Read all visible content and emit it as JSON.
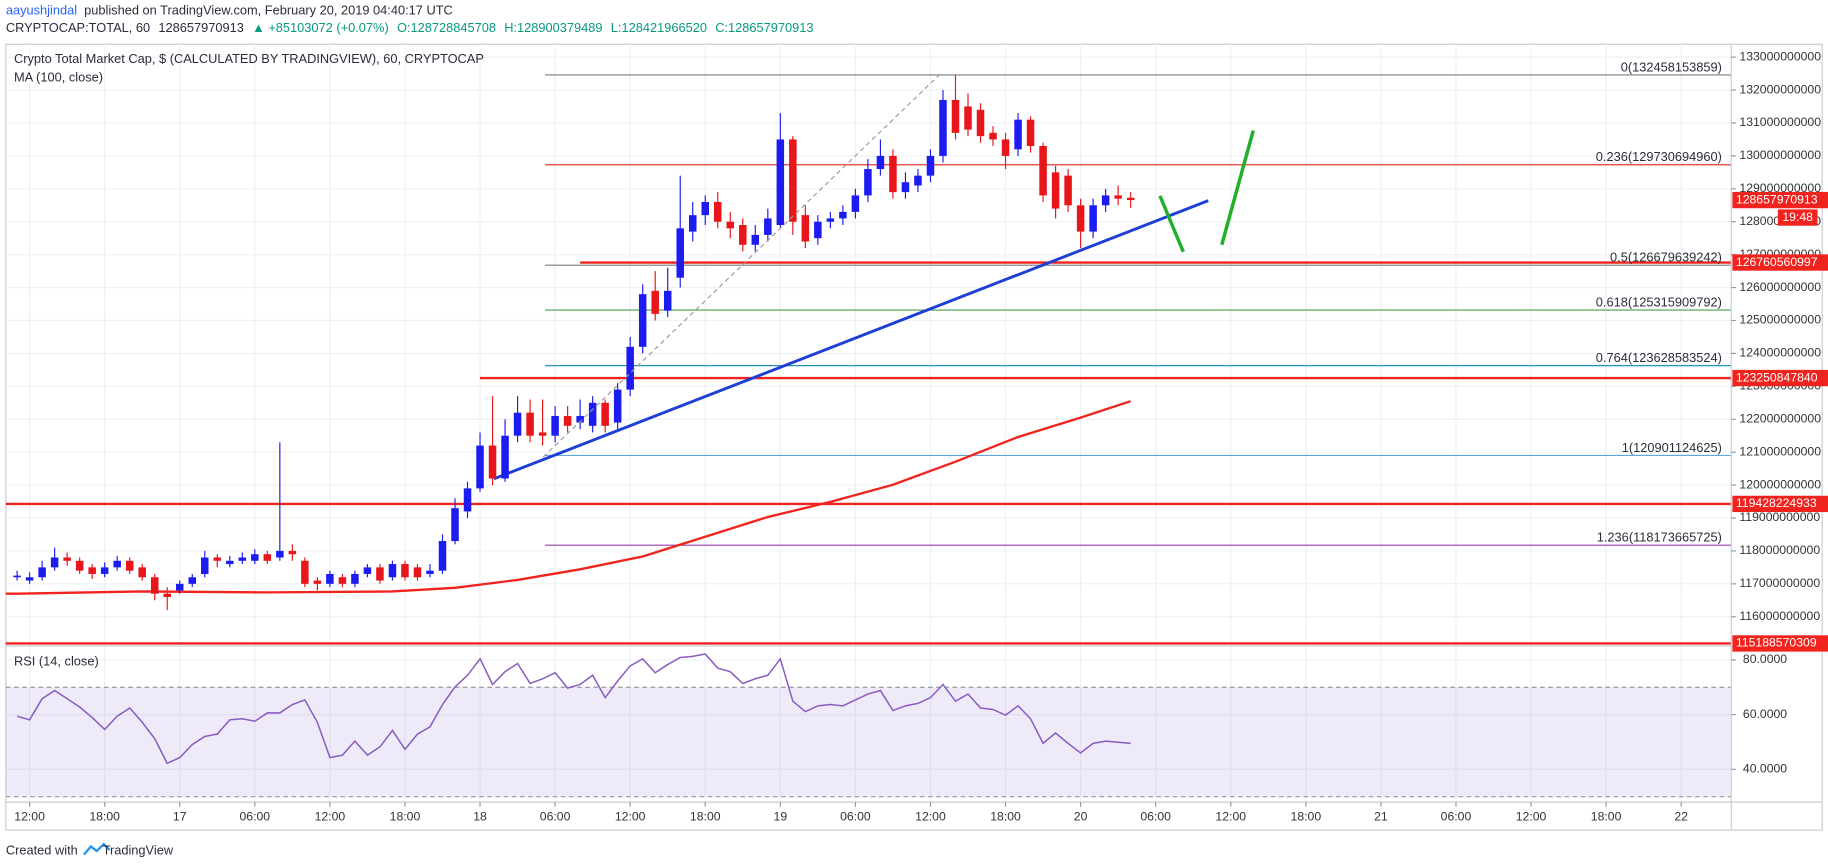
{
  "header": {
    "author": "aayushjindal",
    "published": "published on TradingView.com, February 20, 2019 04:40:17 UTC",
    "symbol": "CRYPTOCAP:TOTAL, 60",
    "last": "128657970913",
    "change": "▲ +85103072 (+0.07%)",
    "ohlc": [
      "O:128728845708",
      "H:128900379489",
      "L:128421966520",
      "C:128657970913"
    ]
  },
  "chart_data": [
    {
      "type": "candlestick",
      "title": "Crypto Total Market Cap, $ (CALCULATED BY TRADINGVIEW), 60, CRYPTOCAP",
      "up_color": "#1c1cf0",
      "down_color": "#e8151b",
      "grid": true,
      "xlim": [
        -0.9,
        137
      ],
      "ylim": [
        115150000000,
        133390000000
      ],
      "xticks": [
        {
          "value": 1,
          "label": "12:00"
        },
        {
          "value": 7,
          "label": "18:00"
        },
        {
          "value": 13,
          "label": "17"
        },
        {
          "value": 19,
          "label": "06:00"
        },
        {
          "value": 25,
          "label": "12:00"
        },
        {
          "value": 31,
          "label": "18:00"
        },
        {
          "value": 37,
          "label": "18"
        },
        {
          "value": 43,
          "label": "06:00"
        },
        {
          "value": 49,
          "label": "12:00"
        },
        {
          "value": 55,
          "label": "18:00"
        },
        {
          "value": 61,
          "label": "19"
        },
        {
          "value": 67,
          "label": "06:00"
        },
        {
          "value": 73,
          "label": "12:00"
        },
        {
          "value": 79,
          "label": "18:00"
        },
        {
          "value": 85,
          "label": "20"
        },
        {
          "value": 91,
          "label": "06:00"
        },
        {
          "value": 97,
          "label": "12:00"
        },
        {
          "value": 103,
          "label": "18:00"
        },
        {
          "value": 109,
          "label": "21"
        },
        {
          "value": 115,
          "label": "06:00"
        },
        {
          "value": 121,
          "label": "12:00"
        },
        {
          "value": 127,
          "label": "18:00"
        },
        {
          "value": 133,
          "label": "22"
        }
      ],
      "yticks": [
        116000000000,
        117000000000,
        118000000000,
        119000000000,
        120000000000,
        121000000000,
        122000000000,
        123000000000,
        124000000000,
        125000000000,
        126000000000,
        127000000000,
        128000000000,
        129000000000,
        130000000000,
        131000000000,
        132000000000,
        133000000000
      ],
      "open": [
        117200000000,
        117100000000,
        117200000000,
        117500000000,
        117800000000,
        117700000000,
        117500000000,
        117300000000,
        117500000000,
        117700000000,
        117500000000,
        117200000000,
        116700000000,
        116800000000,
        117000000000,
        117300000000,
        117800000000,
        117600000000,
        117700000000,
        117700000000,
        117900000000,
        117800000000,
        118000000000,
        117700000000,
        117100000000,
        117000000000,
        117200000000,
        117000000000,
        117300000000,
        117500000000,
        117200000000,
        117600000000,
        117500000000,
        117300000000,
        117400000000,
        118300000000,
        119200000000,
        119900000000,
        121200000000,
        120200000000,
        121500000000,
        122200000000,
        121600000000,
        121500000000,
        122100000000,
        121900000000,
        121800000000,
        122500000000,
        121900000000,
        122900000000,
        124200000000,
        125900000000,
        125300000000,
        126300000000,
        127700000000,
        128200000000,
        128600000000,
        128000000000,
        127900000000,
        127300000000,
        127600000000,
        127900000000,
        130500000000,
        128200000000,
        127500000000,
        128000000000,
        128100000000,
        128300000000,
        128800000000,
        129600000000,
        130000000000,
        128900000000,
        129100000000,
        129400000000,
        130000000000,
        131700000000,
        131500000000,
        131400000000,
        130700000000,
        130500000000,
        130200000000,
        131100000000,
        130300000000,
        129500000000,
        129400000000,
        128500000000,
        127700000000,
        128500000000,
        128800000000,
        128728845708
      ],
      "high": [
        117400000000,
        117350000000,
        117700000000,
        118100000000,
        117950000000,
        117800000000,
        117600000000,
        117650000000,
        117850000000,
        117800000000,
        117600000000,
        117300000000,
        116900000000,
        117100000000,
        117300000000,
        118000000000,
        117900000000,
        117850000000,
        117950000000,
        118050000000,
        118000000000,
        121300000000,
        118200000000,
        117800000000,
        117200000000,
        117400000000,
        117300000000,
        117400000000,
        117600000000,
        117600000000,
        117700000000,
        117700000000,
        117600000000,
        117600000000,
        118500000000,
        119600000000,
        120100000000,
        121600000000,
        122700000000,
        122000000000,
        122700000000,
        122600000000,
        122600000000,
        122400000000,
        122400000000,
        122600000000,
        122700000000,
        122600000000,
        123100000000,
        124500000000,
        126100000000,
        126500000000,
        126600000000,
        129400000000,
        128600000000,
        128800000000,
        128900000000,
        128300000000,
        128100000000,
        127900000000,
        128400000000,
        131300000000,
        130600000000,
        128500000000,
        128200000000,
        128300000000,
        128500000000,
        129000000000,
        129900000000,
        130500000000,
        130200000000,
        129500000000,
        129600000000,
        130200000000,
        132000000000,
        132460000000,
        131900000000,
        131600000000,
        130900000000,
        130700000000,
        131300000000,
        131200000000,
        130400000000,
        129700000000,
        129600000000,
        128700000000,
        128700000000,
        129000000000,
        129100000000,
        128900379489
      ],
      "low": [
        117100000000,
        117000000000,
        117100000000,
        117400000000,
        117550000000,
        117300000000,
        117150000000,
        117200000000,
        117400000000,
        117300000000,
        117100000000,
        116500000000,
        116200000000,
        116700000000,
        116900000000,
        117200000000,
        117500000000,
        117500000000,
        117600000000,
        117600000000,
        117600000000,
        117700000000,
        117700000000,
        116900000000,
        116800000000,
        116900000000,
        116900000000,
        116900000000,
        117200000000,
        117000000000,
        117100000000,
        117100000000,
        117100000000,
        117200000000,
        117300000000,
        118200000000,
        119000000000,
        119800000000,
        120000000000,
        120100000000,
        121300000000,
        121300000000,
        121200000000,
        121300000000,
        121600000000,
        121700000000,
        121600000000,
        121600000000,
        121700000000,
        122700000000,
        124000000000,
        125000000000,
        125100000000,
        126000000000,
        127400000000,
        127900000000,
        127800000000,
        127500000000,
        127100000000,
        127100000000,
        127400000000,
        127800000000,
        127600000000,
        127200000000,
        127300000000,
        127800000000,
        127900000000,
        128100000000,
        128600000000,
        129400000000,
        128700000000,
        128700000000,
        128900000000,
        129200000000,
        129800000000,
        130500000000,
        130600000000,
        130400000000,
        130300000000,
        129600000000,
        130000000000,
        130100000000,
        128600000000,
        128100000000,
        128300000000,
        127200000000,
        127500000000,
        128300000000,
        128500000000,
        128421966520
      ],
      "close": [
        117250000000,
        117200000000,
        117500000000,
        117800000000,
        117700000000,
        117400000000,
        117300000000,
        117500000000,
        117700000000,
        117400000000,
        117200000000,
        116700000000,
        116600000000,
        117000000000,
        117200000000,
        117800000000,
        117700000000,
        117700000000,
        117800000000,
        117900000000,
        117700000000,
        118000000000,
        117900000000,
        117000000000,
        117000000000,
        117300000000,
        117000000000,
        117300000000,
        117500000000,
        117100000000,
        117600000000,
        117200000000,
        117200000000,
        117400000000,
        118300000000,
        119300000000,
        119900000000,
        121200000000,
        120200000000,
        121500000000,
        122200000000,
        121500000000,
        121500000000,
        122100000000,
        121800000000,
        122100000000,
        122500000000,
        121800000000,
        122900000000,
        124200000000,
        125800000000,
        125200000000,
        125900000000,
        127800000000,
        128200000000,
        128600000000,
        128000000000,
        127800000000,
        127300000000,
        127600000000,
        128100000000,
        130500000000,
        128000000000,
        127400000000,
        128000000000,
        128100000000,
        128300000000,
        128800000000,
        129600000000,
        130000000000,
        128900000000,
        129200000000,
        129400000000,
        130000000000,
        131700000000,
        130700000000,
        130800000000,
        130600000000,
        130500000000,
        130000000000,
        131100000000,
        130300000000,
        128800000000,
        128400000000,
        128500000000,
        127700000000,
        128500000000,
        128800000000,
        128700000000,
        128657970913
      ],
      "ma": {
        "name": "MA (100, close)",
        "color": "#f0231e",
        "x": [
          -0.9,
          0,
          10,
          20,
          30,
          35,
          40,
          45,
          50,
          55,
          60,
          65,
          70,
          75,
          80,
          85,
          89
        ],
        "values": [
          116700000000,
          116700000000,
          116770000000,
          116740000000,
          116770000000,
          116880000000,
          117120000000,
          117440000000,
          117830000000,
          118430000000,
          119030000000,
          119490000000,
          120010000000,
          120710000000,
          121460000000,
          122050000000,
          122550000000
        ]
      },
      "trendline": {
        "color": "#1d3fd8",
        "x": [
          38.1,
          95.2
        ],
        "values": [
          120190000000,
          128640000000
        ]
      },
      "hline_color": "#f0231e",
      "hlines": [
        {
          "value": 119428224933,
          "x0": -0.9
        },
        {
          "value": 126760560997,
          "x0": 45
        },
        {
          "value": 123250847840,
          "x0": 37
        },
        {
          "value": 115188570309,
          "x0": -0.9
        }
      ],
      "fib_x0": 42.2,
      "fib": [
        {
          "label": "0(132458153859)",
          "value": 132458153859,
          "color": "#787b86"
        },
        {
          "label": "0.236(129730694960)",
          "value": 129730694960,
          "color": "#e53935"
        },
        {
          "label": "0.5(126679639242)",
          "value": 126679639242,
          "color": "#787b86"
        },
        {
          "label": "0.618(125315909792)",
          "value": 125315909792,
          "color": "#43a047"
        },
        {
          "label": "0.764(123628583524)",
          "value": 123628583524,
          "color": "#2a8fb8"
        },
        {
          "label": "1(120901124625)",
          "value": 120901124625,
          "color": "#5ea7e0"
        },
        {
          "label": "1.236(118173665725)",
          "value": 118173665725,
          "color": "#9c3fb0"
        }
      ],
      "last_tag": {
        "value": 128657970913,
        "countdown": "19:48",
        "color": "#f0231e"
      }
    },
    {
      "type": "line",
      "title": "RSI (14, close)",
      "color": "#8a5cc2",
      "ylim": [
        28,
        84.7
      ],
      "yticks": [
        {
          "value": 40,
          "label": "40.0000"
        },
        {
          "value": 60,
          "label": "60.0000"
        },
        {
          "value": 80,
          "label": "80.0000"
        }
      ],
      "band": [
        70,
        30
      ],
      "band_color": "#9575cd",
      "values": [
        59.4,
        58.1,
        65.8,
        68.8,
        65.8,
        62.8,
        58.9,
        54.6,
        59.4,
        62.4,
        57.2,
        51.2,
        42.2,
        44.3,
        49.0,
        52.0,
        52.9,
        58.1,
        58.5,
        57.6,
        60.6,
        60.6,
        63.7,
        65.4,
        57.2,
        44.3,
        45.2,
        50.3,
        45.2,
        48.2,
        54.2,
        47.3,
        52.9,
        55.5,
        63.7,
        70.1,
        74.4,
        80.4,
        71.0,
        75.7,
        78.7,
        71.4,
        73.1,
        75.3,
        69.7,
        71.0,
        74.4,
        66.2,
        72.3,
        77.8,
        80.4,
        75.3,
        78.3,
        80.9,
        81.3,
        82.2,
        77.0,
        75.7,
        71.4,
        73.1,
        74.4,
        80.4,
        64.9,
        61.1,
        63.2,
        63.7,
        63.2,
        65.4,
        67.5,
        68.8,
        61.5,
        63.2,
        64.1,
        66.2,
        71.0,
        64.9,
        67.5,
        62.4,
        61.9,
        59.8,
        63.2,
        58.5,
        49.5,
        53.3,
        49.5,
        46.0,
        49.5,
        50.3,
        49.9,
        49.5
      ]
    }
  ],
  "footer": {
    "created": "Created with",
    "brand": "TradingView"
  }
}
